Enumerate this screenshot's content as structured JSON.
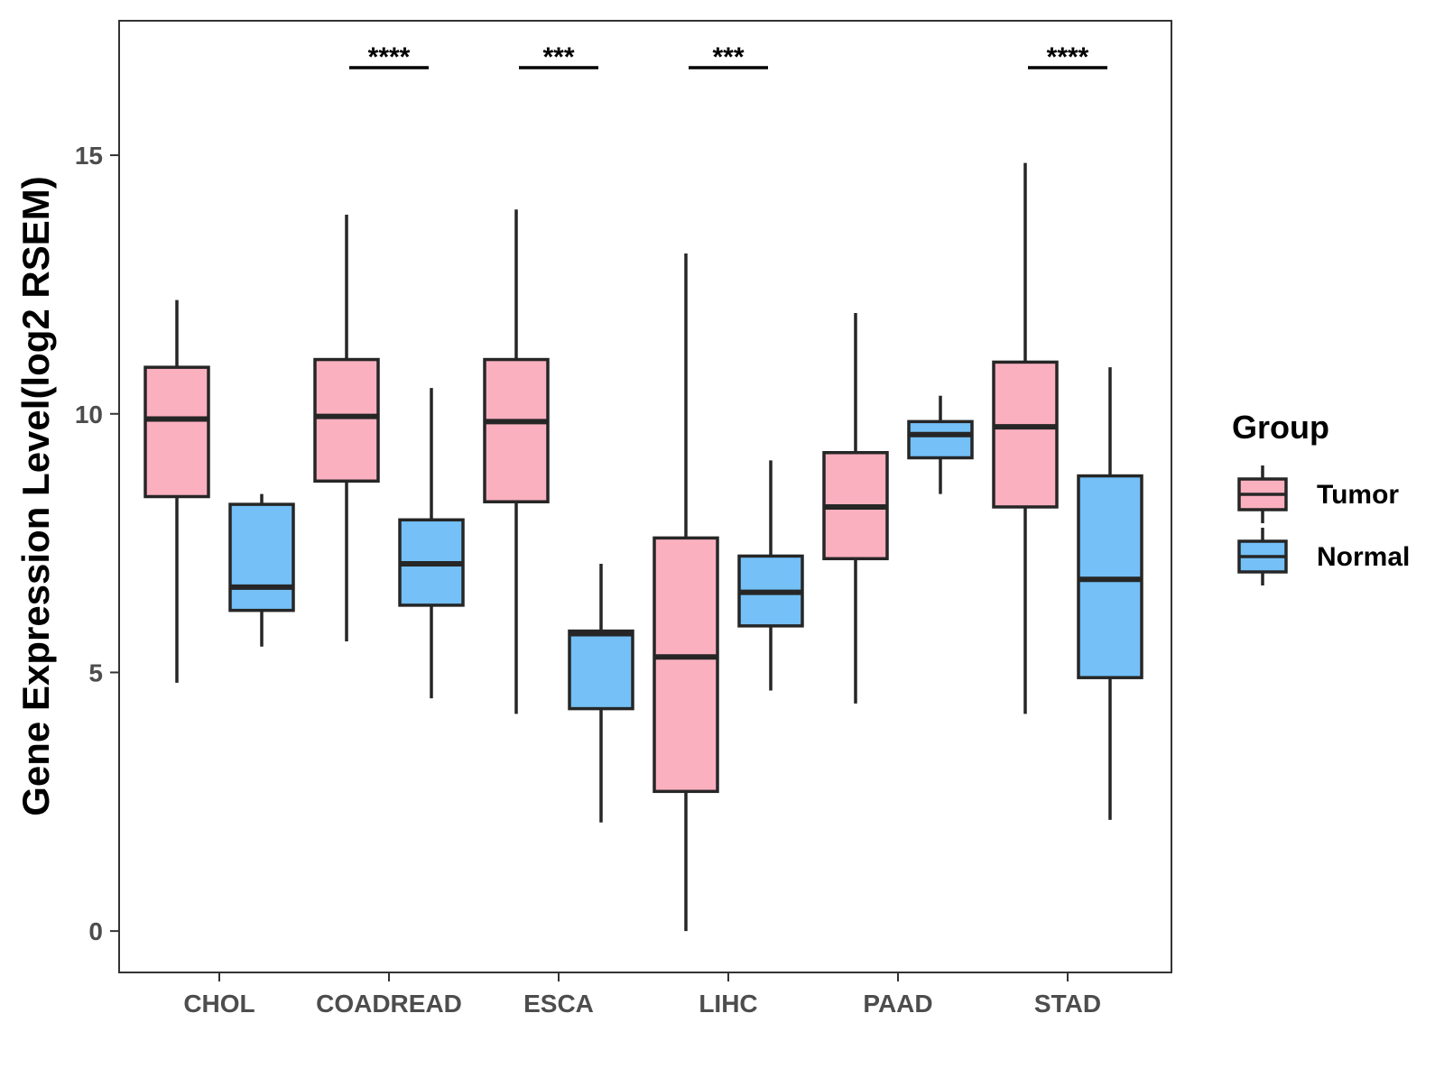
{
  "chart_data": {
    "type": "boxplot",
    "title": "",
    "xlabel": "",
    "ylabel": "Gene Expression Level(log2 RSEM)",
    "ylim": [
      -0.8,
      17.6
    ],
    "yticks": [
      0,
      5,
      10,
      15
    ],
    "ytick_labels": [
      "0",
      "5",
      "10",
      "15"
    ],
    "grid": false,
    "categories": [
      "CHOL",
      "COADREAD",
      "ESCA",
      "LIHC",
      "PAAD",
      "STAD"
    ],
    "series": [
      {
        "name": "Tumor",
        "color": "#FBB0C0",
        "boxes": [
          {
            "whisker_low": 4.8,
            "q1": 8.4,
            "median": 9.9,
            "q3": 10.9,
            "whisker_high": 12.2
          },
          {
            "whisker_low": 5.6,
            "q1": 8.7,
            "median": 9.95,
            "q3": 11.05,
            "whisker_high": 13.85
          },
          {
            "whisker_low": 4.2,
            "q1": 8.3,
            "median": 9.85,
            "q3": 11.05,
            "whisker_high": 13.95
          },
          {
            "whisker_low": 0.0,
            "q1": 2.7,
            "median": 5.3,
            "q3": 7.6,
            "whisker_high": 13.1
          },
          {
            "whisker_low": 4.4,
            "q1": 7.2,
            "median": 8.2,
            "q3": 9.25,
            "whisker_high": 11.95
          },
          {
            "whisker_low": 4.2,
            "q1": 8.2,
            "median": 9.75,
            "q3": 11.0,
            "whisker_high": 14.85
          }
        ]
      },
      {
        "name": "Normal",
        "color": "#74C0F7",
        "boxes": [
          {
            "whisker_low": 5.5,
            "q1": 6.2,
            "median": 6.65,
            "q3": 8.25,
            "whisker_high": 8.45
          },
          {
            "whisker_low": 4.5,
            "q1": 6.3,
            "median": 7.1,
            "q3": 7.95,
            "whisker_high": 10.5
          },
          {
            "whisker_low": 2.1,
            "q1": 4.3,
            "median": 5.75,
            "q3": 5.8,
            "whisker_high": 7.1
          },
          {
            "whisker_low": 4.65,
            "q1": 5.9,
            "median": 6.55,
            "q3": 7.25,
            "whisker_high": 9.1
          },
          {
            "whisker_low": 8.45,
            "q1": 9.15,
            "median": 9.6,
            "q3": 9.85,
            "whisker_high": 10.35
          },
          {
            "whisker_low": 2.15,
            "q1": 4.9,
            "median": 6.8,
            "q3": 8.8,
            "whisker_high": 10.9
          }
        ]
      }
    ],
    "significance": [
      {
        "category": "CHOL",
        "label": ""
      },
      {
        "category": "COADREAD",
        "label": "****"
      },
      {
        "category": "ESCA",
        "label": "***"
      },
      {
        "category": "LIHC",
        "label": "***"
      },
      {
        "category": "PAAD",
        "label": ""
      },
      {
        "category": "STAD",
        "label": "****"
      }
    ],
    "legend": {
      "title": "Group",
      "position": "right",
      "items": [
        "Tumor",
        "Normal"
      ]
    }
  }
}
